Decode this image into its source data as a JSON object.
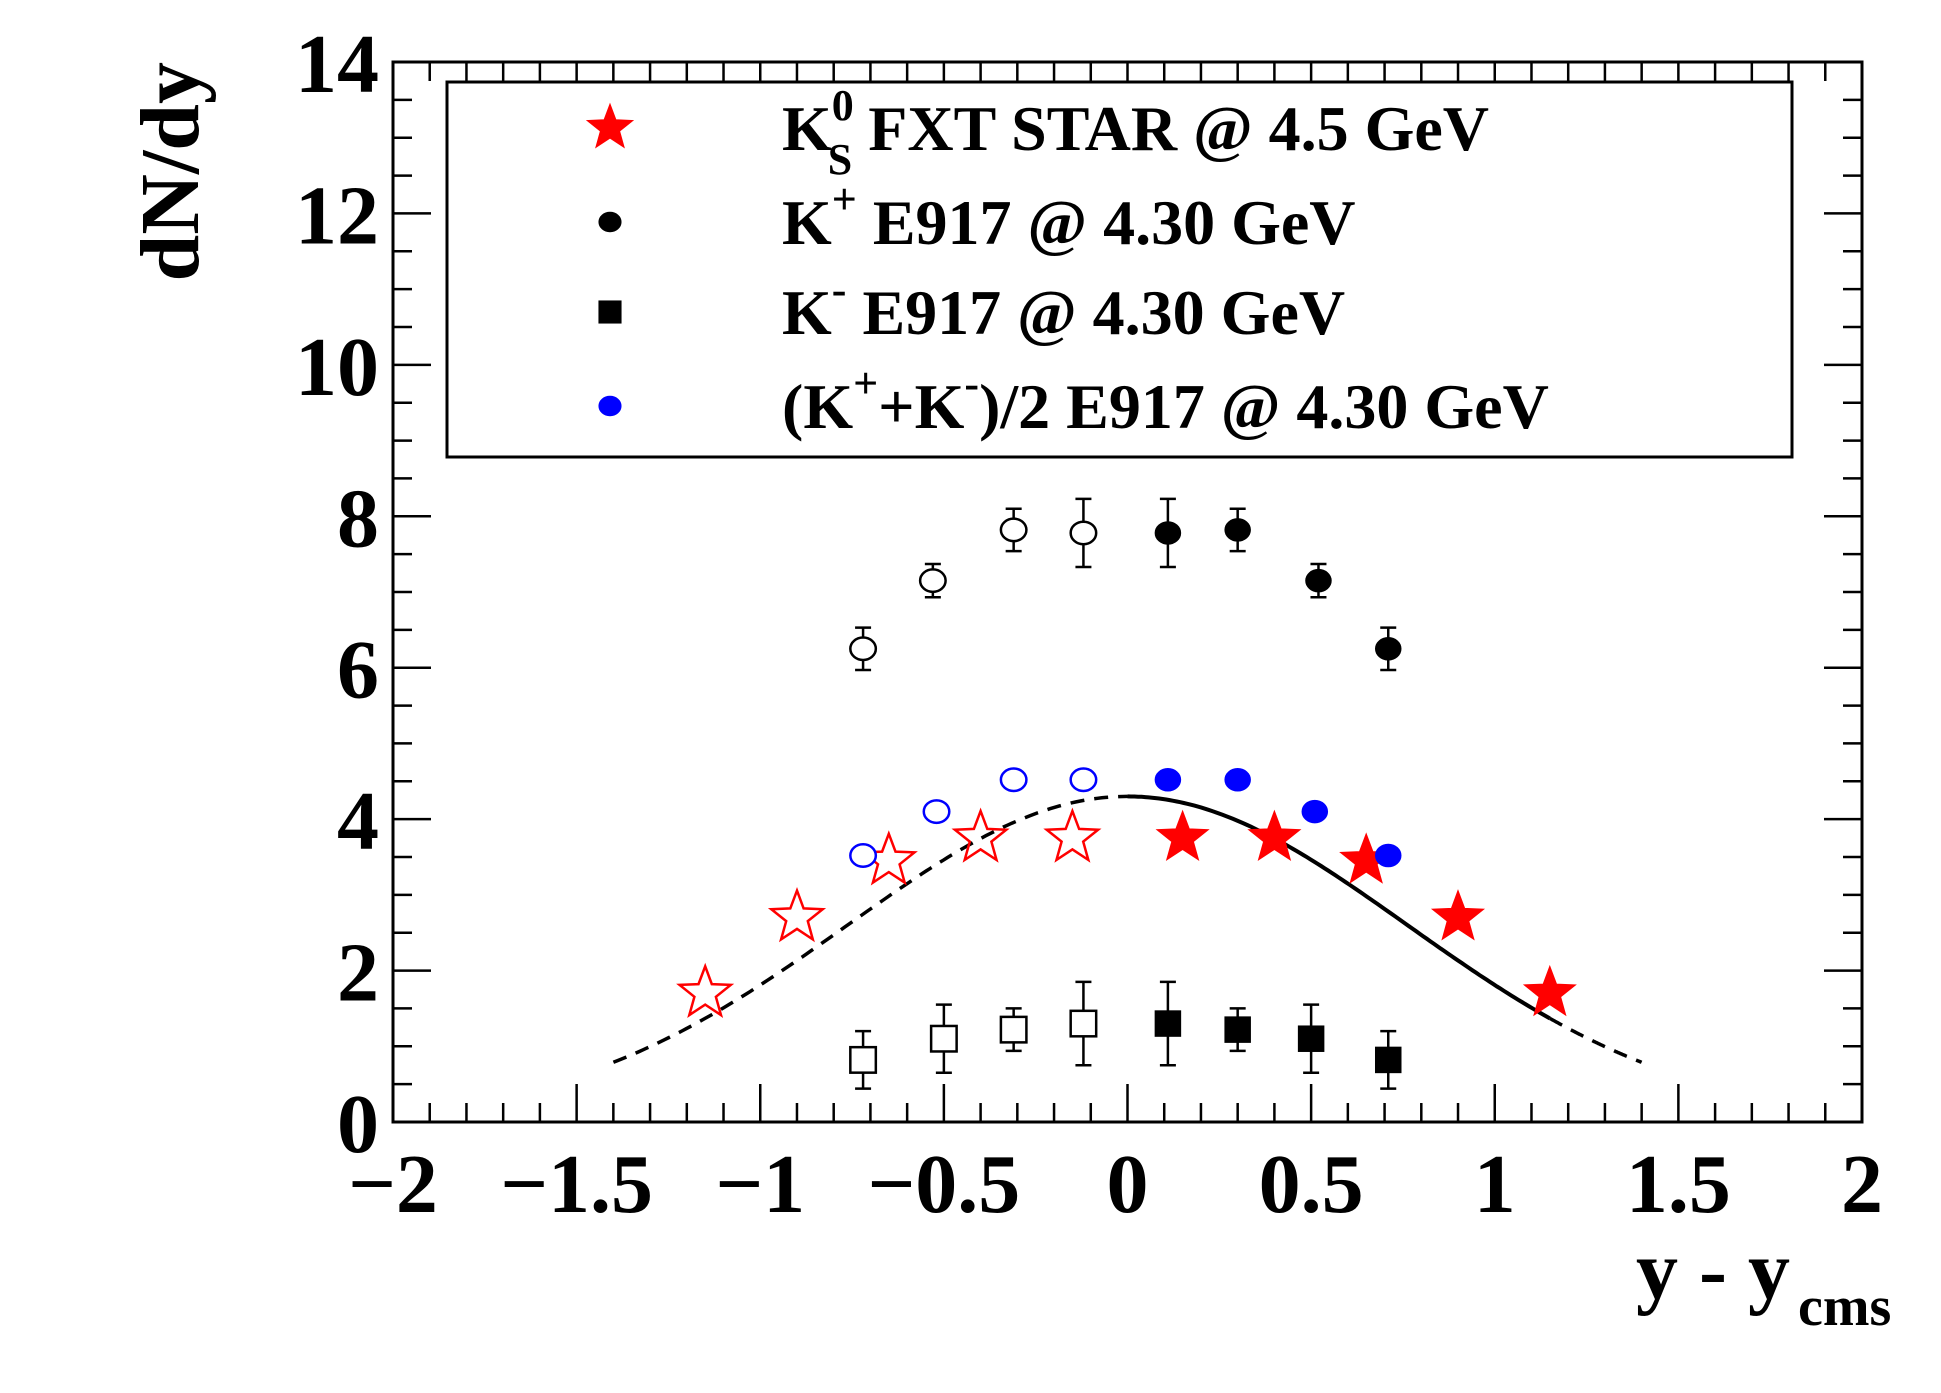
{
  "chart_data": {
    "type": "scatter",
    "xlabel": "y - y",
    "xlabel_sub": "cms",
    "ylabel": "dN/dy",
    "xlim": [
      -2,
      2
    ],
    "ylim": [
      0,
      14
    ],
    "x_ticks": [
      "−2",
      "−1.5",
      "−1",
      "−0.5",
      "0",
      "0.5",
      "1",
      "1.5",
      "2"
    ],
    "y_ticks": [
      "0",
      "2",
      "4",
      "6",
      "8",
      "10",
      "12",
      "14"
    ],
    "x_tick_values": [
      -2,
      -1.5,
      -1,
      -0.5,
      0,
      0.5,
      1,
      1.5,
      2
    ],
    "y_tick_values": [
      0,
      2,
      4,
      6,
      8,
      10,
      12,
      14
    ],
    "legend_position": "top",
    "legend": [
      {
        "id": "ks0",
        "pre": "K",
        "sup": "0",
        "sub": "S",
        "post": " FXT STAR @ 4.5 GeV",
        "marker": "star",
        "color": "#ff0000"
      },
      {
        "id": "kplus",
        "pre": "K",
        "sup": "+",
        "post": " E917 @ 4.30 GeV",
        "marker": "circle",
        "color": "#000000"
      },
      {
        "id": "kminus",
        "pre": "K",
        "sup": "-",
        "post": " E917 @ 4.30 GeV",
        "marker": "square",
        "color": "#000000"
      },
      {
        "id": "kavg",
        "pre": "(K",
        "sup": "+",
        "mid": "+K",
        "sup2": "-",
        "post": ")/2 E917 @ 4.30 GeV",
        "marker": "circle",
        "color": "#0000ff"
      }
    ],
    "series": [
      {
        "id": "ks0",
        "color": "#ff0000",
        "marker": "star",
        "points": [
          {
            "x": -1.15,
            "y": 1.7,
            "open": true
          },
          {
            "x": -0.9,
            "y": 2.7,
            "open": true
          },
          {
            "x": -0.65,
            "y": 3.45,
            "open": true
          },
          {
            "x": -0.4,
            "y": 3.75,
            "open": true
          },
          {
            "x": -0.15,
            "y": 3.75,
            "open": true
          },
          {
            "x": 0.15,
            "y": 3.75,
            "open": false
          },
          {
            "x": 0.4,
            "y": 3.75,
            "open": false
          },
          {
            "x": 0.65,
            "y": 3.45,
            "open": false
          },
          {
            "x": 0.9,
            "y": 2.7,
            "open": false
          },
          {
            "x": 1.15,
            "y": 1.7,
            "open": false
          }
        ]
      },
      {
        "id": "kplus",
        "color": "#000000",
        "marker": "circle",
        "points": [
          {
            "x": -0.72,
            "y": 6.25,
            "err": 0.28,
            "open": true
          },
          {
            "x": -0.53,
            "y": 7.15,
            "err": 0.22,
            "open": true
          },
          {
            "x": -0.31,
            "y": 7.82,
            "err": 0.28,
            "open": true
          },
          {
            "x": -0.12,
            "y": 7.78,
            "err": 0.45,
            "open": true
          },
          {
            "x": 0.11,
            "y": 7.78,
            "err": 0.45,
            "open": false
          },
          {
            "x": 0.3,
            "y": 7.82,
            "err": 0.28,
            "open": false
          },
          {
            "x": 0.52,
            "y": 7.15,
            "err": 0.22,
            "open": false
          },
          {
            "x": 0.71,
            "y": 6.25,
            "err": 0.28,
            "open": false
          }
        ]
      },
      {
        "id": "kminus",
        "color": "#000000",
        "marker": "square",
        "points": [
          {
            "x": -0.72,
            "y": 0.82,
            "err": 0.38,
            "open": true
          },
          {
            "x": -0.5,
            "y": 1.1,
            "err": 0.45,
            "open": true
          },
          {
            "x": -0.31,
            "y": 1.22,
            "err": 0.28,
            "open": true
          },
          {
            "x": -0.12,
            "y": 1.3,
            "err": 0.55,
            "open": true
          },
          {
            "x": 0.11,
            "y": 1.3,
            "err": 0.55,
            "open": false
          },
          {
            "x": 0.3,
            "y": 1.22,
            "err": 0.28,
            "open": false
          },
          {
            "x": 0.5,
            "y": 1.1,
            "err": 0.45,
            "open": false
          },
          {
            "x": 0.71,
            "y": 0.82,
            "err": 0.38,
            "open": false
          }
        ]
      },
      {
        "id": "kavg",
        "color": "#0000ff",
        "marker": "circle",
        "points": [
          {
            "x": -0.72,
            "y": 3.52,
            "open": true
          },
          {
            "x": -0.52,
            "y": 4.1,
            "open": true
          },
          {
            "x": -0.31,
            "y": 4.52,
            "open": true
          },
          {
            "x": -0.12,
            "y": 4.52,
            "open": true
          },
          {
            "x": 0.11,
            "y": 4.52,
            "open": false
          },
          {
            "x": 0.3,
            "y": 4.52,
            "open": false
          },
          {
            "x": 0.51,
            "y": 4.1,
            "open": false
          },
          {
            "x": 0.71,
            "y": 3.52,
            "open": false
          }
        ]
      }
    ],
    "fit_curve": {
      "shape": "gaussian",
      "amplitude": 4.3,
      "mean": 0.0,
      "sigma": 0.76,
      "solid_range": [
        0.0,
        1.15
      ],
      "dashed_ranges": [
        [
          -1.4,
          0.0
        ],
        [
          1.15,
          1.4
        ]
      ],
      "color": "#000000"
    }
  }
}
